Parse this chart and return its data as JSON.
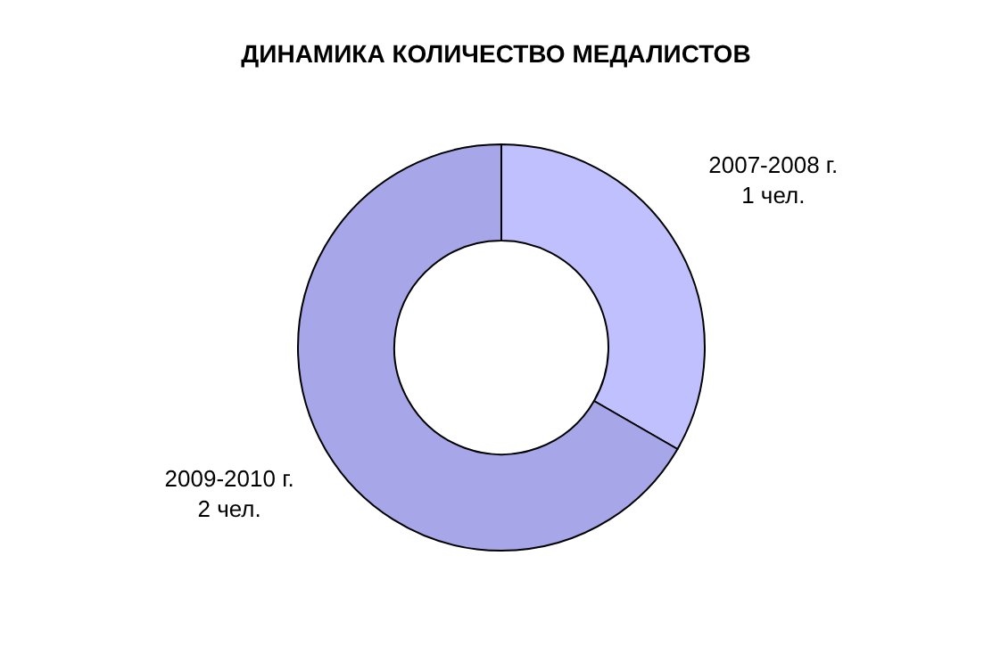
{
  "chart_data": {
    "type": "donut",
    "title": "ДИНАМИКА КОЛИЧЕСТВО МЕДАЛИСТОВ",
    "categories": [
      "2007-2008 г.",
      "2009-2010 г."
    ],
    "values": [
      1,
      2
    ],
    "value_labels": [
      "1 чел.",
      "2 чел."
    ],
    "colors": [
      "#c0c0ff",
      "#a6a6e8"
    ]
  }
}
